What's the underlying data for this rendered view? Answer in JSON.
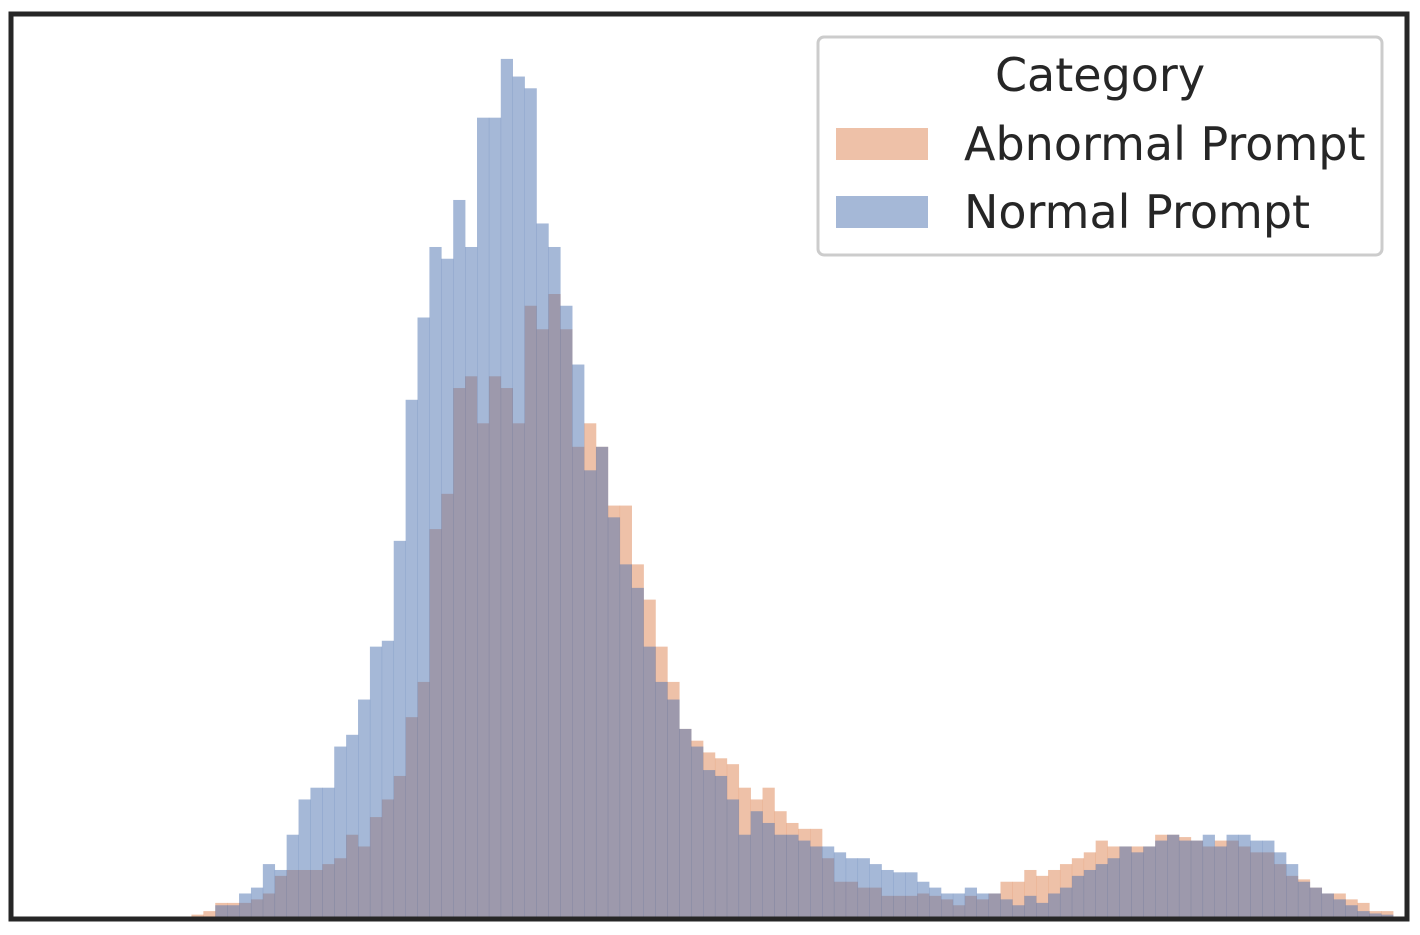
{
  "chart_data": {
    "type": "histogram",
    "title": "",
    "xlabel": "",
    "ylabel": "",
    "grid": false,
    "axis_ticks": false,
    "bins": 117,
    "legend": {
      "title": "Category",
      "placement": "top-right",
      "entries": [
        {
          "label": "Abnormal Prompt",
          "color": "#dd8452"
        },
        {
          "label": "Normal Prompt",
          "color": "#4c72b0"
        }
      ]
    },
    "series": [
      {
        "name": "Abnormal Prompt",
        "color": "#dd8452",
        "opacity": 0.5,
        "values": [
          0,
          0,
          0,
          0,
          0,
          0,
          0,
          0,
          0,
          0,
          0,
          0,
          0,
          0,
          0,
          0.2,
          0.5,
          1.2,
          1.2,
          1.2,
          1.5,
          2.0,
          3.5,
          4.0,
          4.0,
          4.0,
          4.5,
          5.0,
          7.0,
          6.0,
          8.5,
          10.0,
          12.0,
          17.0,
          20.0,
          33.0,
          36.0,
          45.0,
          46.0,
          42.0,
          46.0,
          45.0,
          42.0,
          52.0,
          50.0,
          53.0,
          50.0,
          40.0,
          42.0,
          40.0,
          35.0,
          35.0,
          30.0,
          27.0,
          23.0,
          20.0,
          16.0,
          15.0,
          14.0,
          13.5,
          13.0,
          11.0,
          10.0,
          11.0,
          9.0,
          8.0,
          7.5,
          7.5,
          5.0,
          3.0,
          3.0,
          2.5,
          2.5,
          1.8,
          1.8,
          1.8,
          2.0,
          1.8,
          1.5,
          1.0,
          1.8,
          1.5,
          2.0,
          3.0,
          3.0,
          4.0,
          3.5,
          4.0,
          4.5,
          5.0,
          5.5,
          6.5,
          6.0,
          6.0,
          6.0,
          6.0,
          7.0,
          7.0,
          6.8,
          6.5,
          6.0,
          6.5,
          6.5,
          6.0,
          5.5,
          5.5,
          4.5,
          3.5,
          3.2,
          2.5,
          2.0,
          2.0,
          1.5,
          1.2,
          0.5,
          0.5,
          0.0
        ]
      },
      {
        "name": "Normal Prompt",
        "color": "#4c72b0",
        "opacity": 0.5,
        "values": [
          0,
          0,
          0,
          0,
          0,
          0,
          0,
          0,
          0,
          0,
          0,
          0,
          0,
          0,
          0,
          0,
          0,
          1.0,
          1.0,
          2.0,
          2.5,
          4.5,
          4.0,
          7.0,
          10.0,
          11.0,
          11.0,
          14.5,
          15.5,
          18.5,
          23.0,
          23.5,
          32.0,
          44.0,
          51.0,
          57.0,
          56.0,
          61.0,
          57.0,
          68.0,
          68.0,
          73.0,
          71.5,
          70.5,
          59.0,
          57.0,
          52.0,
          47.0,
          38.0,
          40.0,
          34.0,
          30.0,
          28.0,
          23.0,
          20.0,
          18.5,
          16.0,
          14.5,
          12.5,
          12.0,
          10.0,
          7.0,
          9.0,
          8.0,
          7.0,
          7.0,
          6.5,
          6.0,
          6.0,
          5.5,
          5.0,
          5.0,
          4.5,
          4.0,
          3.8,
          3.8,
          3.0,
          2.5,
          2.0,
          2.0,
          2.5,
          2.0,
          2.0,
          1.5,
          1.0,
          1.8,
          1.2,
          2.0,
          2.5,
          3.5,
          4.0,
          4.5,
          5.0,
          6.0,
          5.5,
          6.0,
          6.5,
          7.0,
          6.5,
          6.5,
          7.0,
          6.0,
          7.0,
          7.0,
          6.5,
          6.5,
          5.5,
          4.5,
          3.0,
          2.5,
          2.0,
          1.5,
          1.0,
          0.5,
          0.3,
          0.2,
          0.0
        ]
      }
    ]
  }
}
